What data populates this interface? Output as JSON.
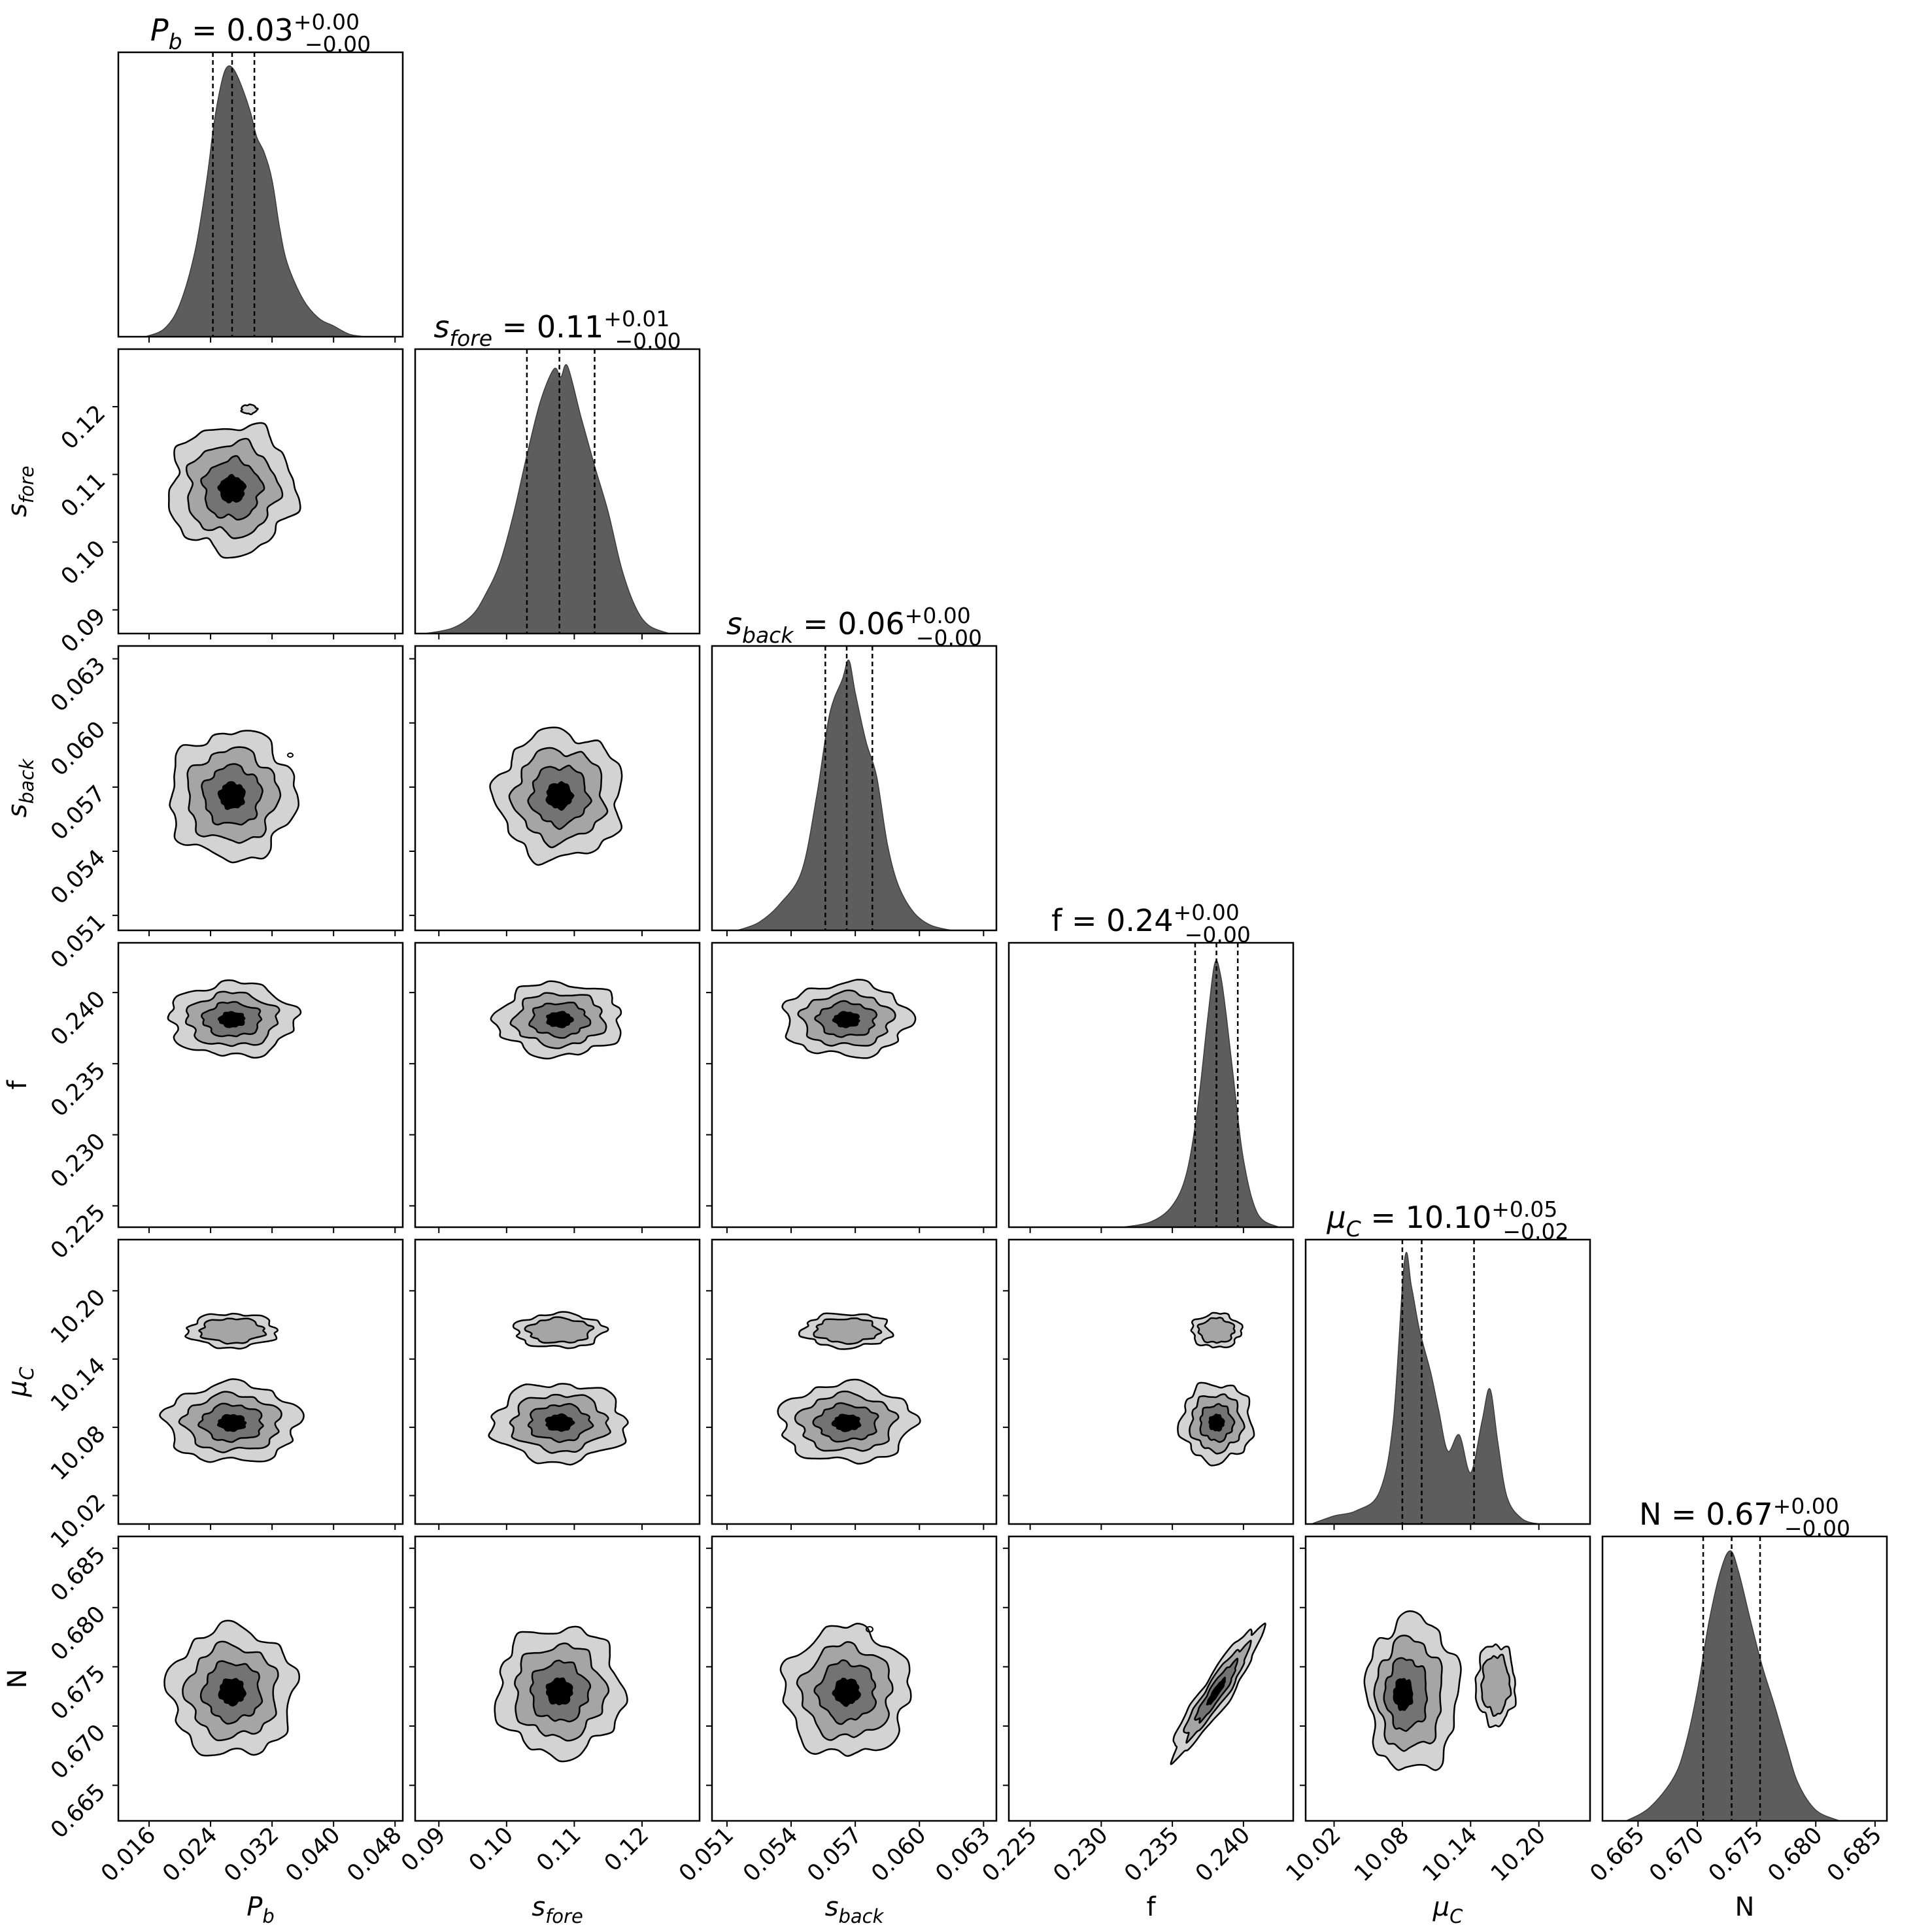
{
  "chart_data": {
    "type": "corner",
    "parameters": [
      {
        "key": "Pb",
        "label": "P_b",
        "median": "0.03",
        "err_plus": "+0.00",
        "err_minus": "−0.00",
        "range": [
          0.012,
          0.049
        ],
        "ticks": [
          "0.016",
          "0.024",
          "0.032",
          "0.040",
          "0.048"
        ],
        "tick_values": [
          0.016,
          0.024,
          0.032,
          0.04,
          0.048
        ],
        "quantiles": [
          0.0243,
          0.0268,
          0.0297
        ]
      },
      {
        "key": "sfore",
        "label": "s_fore",
        "median": "0.11",
        "err_plus": "+0.01",
        "err_minus": "−0.00",
        "range": [
          0.0865,
          0.1285
        ],
        "ticks": [
          "0.09",
          "0.10",
          "0.11",
          "0.12"
        ],
        "tick_values": [
          0.09,
          0.1,
          0.11,
          0.12
        ],
        "quantiles": [
          0.103,
          0.1078,
          0.113
        ]
      },
      {
        "key": "sback",
        "label": "s_back",
        "median": "0.06",
        "err_plus": "+0.00",
        "err_minus": "−0.00",
        "range": [
          0.0503,
          0.0636
        ],
        "ticks": [
          "0.051",
          "0.054",
          "0.057",
          "0.060",
          "0.063"
        ],
        "tick_values": [
          0.051,
          0.054,
          0.057,
          0.06,
          0.063
        ],
        "quantiles": [
          0.0556,
          0.0566,
          0.0578
        ]
      },
      {
        "key": "f",
        "label": "f",
        "median": "0.24",
        "err_plus": "+0.00",
        "err_minus": "−0.00",
        "range": [
          0.2235,
          0.2435
        ],
        "ticks": [
          "0.225",
          "0.230",
          "0.235",
          "0.240"
        ],
        "tick_values": [
          0.225,
          0.23,
          0.235,
          0.24
        ],
        "quantiles": [
          0.2366,
          0.2381,
          0.2396
        ]
      },
      {
        "key": "muC",
        "label": "μ_C",
        "median": "10.10",
        "err_plus": "+0.05",
        "err_minus": "−0.02",
        "range": [
          9.995,
          10.245
        ],
        "ticks": [
          "10.02",
          "10.08",
          "10.14",
          "10.20"
        ],
        "tick_values": [
          10.02,
          10.08,
          10.14,
          10.2
        ],
        "quantiles": [
          10.08,
          10.097,
          10.143
        ]
      },
      {
        "key": "N",
        "label": "N",
        "median": "0.67",
        "err_plus": "+0.00",
        "err_minus": "−0.00",
        "range": [
          0.662,
          0.686
        ],
        "ticks": [
          "0.665",
          "0.670",
          "0.675",
          "0.680",
          "0.685"
        ],
        "tick_values": [
          0.665,
          0.67,
          0.675,
          0.68,
          0.685
        ],
        "quantiles": [
          0.6705,
          0.6729,
          0.6753
        ]
      }
    ],
    "histograms": [
      {
        "param": "Pb",
        "x": [
          0.0155,
          0.018,
          0.02,
          0.022,
          0.0235,
          0.0245,
          0.0255,
          0.0262,
          0.027,
          0.028,
          0.0292,
          0.03,
          0.031,
          0.032,
          0.033,
          0.034,
          0.036,
          0.038,
          0.04,
          0.042,
          0.044
        ],
        "y": [
          0.0,
          0.03,
          0.12,
          0.32,
          0.58,
          0.8,
          0.95,
          1.0,
          0.99,
          0.93,
          0.83,
          0.74,
          0.68,
          0.58,
          0.4,
          0.27,
          0.14,
          0.07,
          0.04,
          0.01,
          0.0
        ]
      },
      {
        "param": "sfore",
        "x": [
          0.088,
          0.092,
          0.095,
          0.097,
          0.099,
          0.101,
          0.103,
          0.105,
          0.107,
          0.108,
          0.109,
          0.111,
          0.113,
          0.115,
          0.117,
          0.119,
          0.121,
          0.124
        ],
        "y": [
          0.0,
          0.02,
          0.07,
          0.15,
          0.26,
          0.44,
          0.66,
          0.86,
          0.98,
          0.95,
          0.99,
          0.8,
          0.62,
          0.45,
          0.24,
          0.1,
          0.03,
          0.0
        ]
      },
      {
        "param": "sback",
        "x": [
          0.0515,
          0.0525,
          0.0535,
          0.0545,
          0.0552,
          0.0558,
          0.0564,
          0.0567,
          0.057,
          0.0575,
          0.058,
          0.0585,
          0.059,
          0.0597,
          0.0605,
          0.0615
        ],
        "y": [
          0.0,
          0.03,
          0.1,
          0.22,
          0.5,
          0.8,
          0.93,
          1.0,
          0.88,
          0.7,
          0.57,
          0.32,
          0.17,
          0.07,
          0.02,
          0.0
        ]
      },
      {
        "param": "f",
        "x": [
          0.2315,
          0.2335,
          0.235,
          0.236,
          0.2368,
          0.2375,
          0.238,
          0.2384,
          0.2388,
          0.2393,
          0.24,
          0.241,
          0.2425
        ],
        "y": [
          0.0,
          0.02,
          0.08,
          0.2,
          0.45,
          0.78,
          0.98,
          0.93,
          0.78,
          0.55,
          0.25,
          0.05,
          0.0
        ]
      },
      {
        "param": "muC",
        "x": [
          10.0,
          10.02,
          10.04,
          10.06,
          10.072,
          10.082,
          10.088,
          10.095,
          10.105,
          10.112,
          10.12,
          10.13,
          10.14,
          10.15,
          10.157,
          10.164,
          10.172,
          10.185,
          10.2
        ],
        "y": [
          0.0,
          0.03,
          0.05,
          0.12,
          0.38,
          0.98,
          0.88,
          0.72,
          0.56,
          0.42,
          0.27,
          0.33,
          0.19,
          0.38,
          0.5,
          0.3,
          0.1,
          0.02,
          0.0
        ]
      },
      {
        "param": "N",
        "x": [
          0.664,
          0.666,
          0.668,
          0.669,
          0.67,
          0.671,
          0.672,
          0.6728,
          0.6735,
          0.6745,
          0.6755,
          0.6765,
          0.6775,
          0.6785,
          0.68,
          0.682
        ],
        "y": [
          0.0,
          0.05,
          0.16,
          0.28,
          0.48,
          0.74,
          0.93,
          1.0,
          0.92,
          0.74,
          0.57,
          0.43,
          0.28,
          0.14,
          0.04,
          0.0
        ]
      }
    ],
    "colors": {
      "fill": "#5d5d5d",
      "contour_levels": [
        "#d3d3d3",
        "#a5a5a5",
        "#737373",
        "#000000"
      ],
      "line": "#000000"
    }
  }
}
